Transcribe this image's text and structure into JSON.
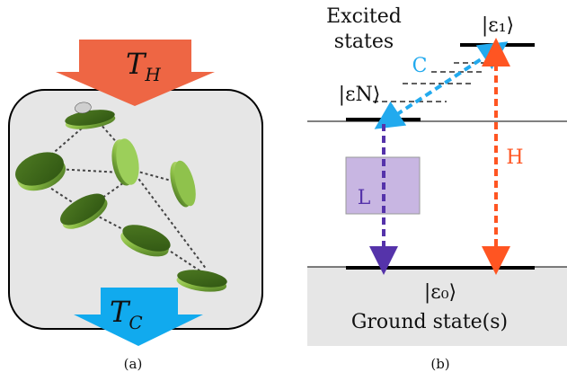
{
  "panel_a": {
    "hot_label": "T",
    "hot_sub": "H",
    "cold_label": "T",
    "cold_sub": "C",
    "caption": "(a)",
    "colors": {
      "hot_arrow": "#ee6644",
      "cold_arrow": "#11aaee",
      "box_fill": "#e6e6e6",
      "disc": "#5e8a2a",
      "disc_light": "#9ccf5a"
    }
  },
  "panel_b": {
    "excited_label_line1": "Excited",
    "excited_label_line2": "states",
    "eps1": "|ε₁⟩",
    "epsN": "|εN⟩",
    "eps0": "|ε₀⟩",
    "ground_label": "Ground state(s)",
    "arrow_C": "C",
    "arrow_H": "H",
    "arrow_L": "L",
    "caption": "(b)",
    "colors": {
      "C": "#22aaee",
      "H": "#ff5522",
      "L": "#5533aa",
      "L_box": "#c8b6e2",
      "ground_fill": "#e6e6e6"
    }
  }
}
